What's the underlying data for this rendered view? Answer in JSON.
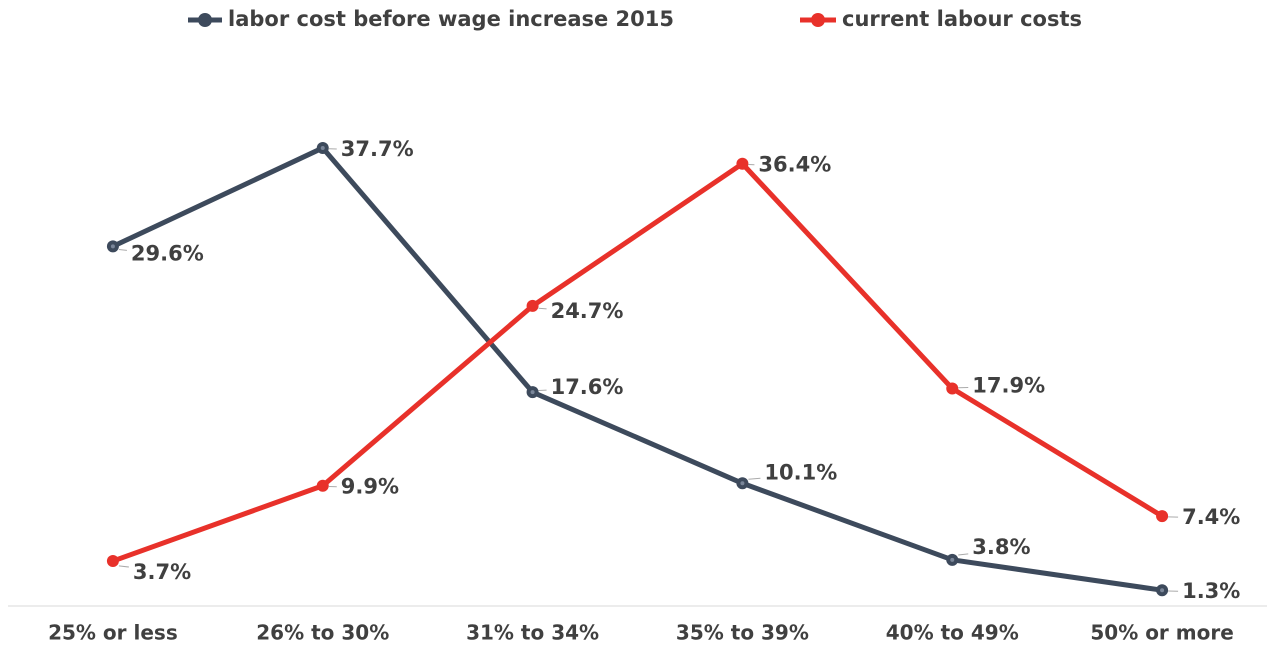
{
  "chart_data": {
    "type": "line",
    "categories": [
      "25% or less",
      "26% to 30%",
      "31% to 34%",
      "35% to 39%",
      "40% to 49%",
      "50% or more"
    ],
    "series": [
      {
        "name": "labor cost before wage increase 2015",
        "color": "#3d4a5c",
        "values": [
          29.6,
          37.7,
          17.6,
          10.1,
          3.8,
          1.3
        ],
        "value_labels": [
          "29.6%",
          "37.7%",
          "17.6%",
          "10.1%",
          "3.8%",
          "1.3%"
        ]
      },
      {
        "name": "current labour costs",
        "color": "#e8312a",
        "values": [
          3.7,
          9.9,
          24.7,
          36.4,
          17.9,
          7.4
        ],
        "value_labels": [
          "3.7%",
          "9.9%",
          "24.7%",
          "36.4%",
          "17.9%",
          "7.4%"
        ]
      }
    ],
    "ylim": [
      0,
      40
    ],
    "legend": "top"
  }
}
